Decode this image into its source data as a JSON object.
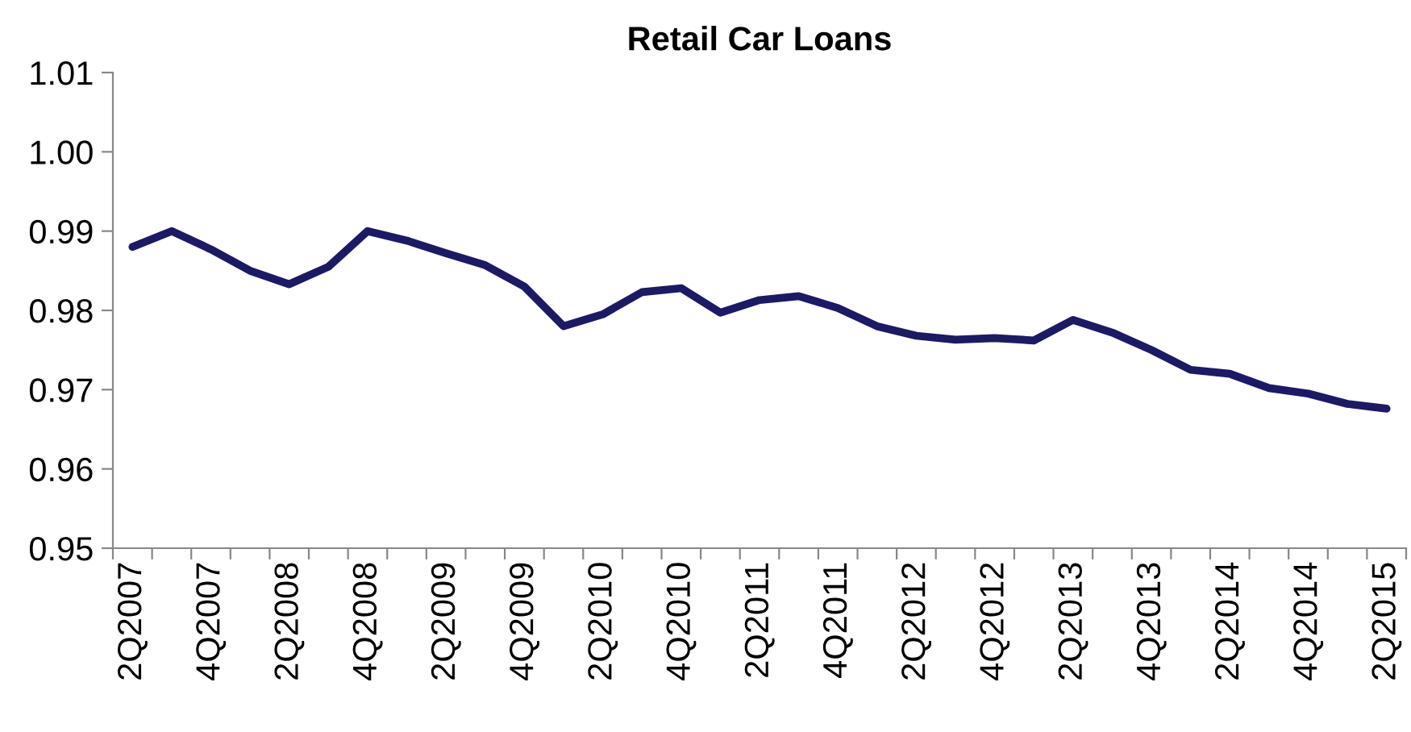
{
  "chart_data": {
    "type": "line",
    "title": "Retail Car Loans",
    "categories": [
      "2Q2007",
      null,
      "4Q2007",
      null,
      "2Q2008",
      null,
      "4Q2008",
      null,
      "2Q2009",
      null,
      "4Q2009",
      null,
      "2Q2010",
      null,
      "4Q2010",
      null,
      "2Q2011",
      null,
      "4Q2011",
      null,
      "2Q2012",
      null,
      "4Q2012",
      null,
      "2Q2013",
      null,
      "4Q2013",
      null,
      "2Q2014",
      null,
      "4Q2014",
      null,
      "2Q2015"
    ],
    "series": [
      {
        "color": "#1c1a66",
        "values": [
          0.988,
          0.99,
          0.9877,
          0.985,
          0.9833,
          0.9855,
          0.99,
          0.9888,
          0.9872,
          0.9857,
          0.983,
          0.978,
          0.9795,
          0.9823,
          0.9828,
          0.9797,
          0.9813,
          0.9818,
          0.9803,
          0.978,
          0.9768,
          0.9763,
          0.9765,
          0.9762,
          0.9788,
          0.9772,
          0.975,
          0.9725,
          0.972,
          0.9702,
          0.9695,
          0.9682,
          0.9676
        ]
      }
    ],
    "ylim": [
      0.95,
      1.01
    ],
    "yticks": [
      {
        "value": 0.95,
        "label": "0.95"
      },
      {
        "value": 0.96,
        "label": "0.96"
      },
      {
        "value": 0.97,
        "label": "0.97"
      },
      {
        "value": 0.98,
        "label": "0.98"
      },
      {
        "value": 0.99,
        "label": "0.99"
      },
      {
        "value": 1.0,
        "label": "1.00"
      },
      {
        "value": 1.01,
        "label": "1.01"
      }
    ],
    "grid": false,
    "legend": false,
    "marker": "none",
    "line_style": "solid"
  }
}
